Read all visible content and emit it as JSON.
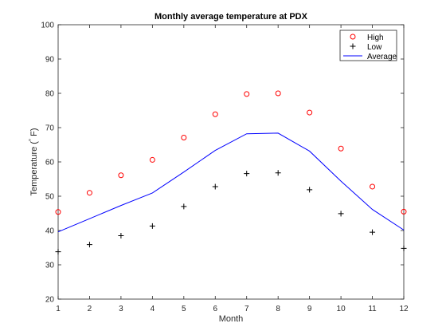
{
  "chart_data": {
    "type": "line",
    "title": "Monthly average temperature at PDX",
    "xlabel": "Month",
    "ylabel_prefix": "Temperature (",
    "ylabel_degree": "°",
    "ylabel_suffix": "F)",
    "xlim": [
      1,
      12
    ],
    "ylim": [
      20,
      100
    ],
    "x_ticks": [
      1,
      2,
      3,
      4,
      5,
      6,
      7,
      8,
      9,
      10,
      11,
      12
    ],
    "y_ticks": [
      20,
      30,
      40,
      50,
      60,
      70,
      80,
      90,
      100
    ],
    "grid": false,
    "legend_position": "top-right",
    "x": [
      1,
      2,
      3,
      4,
      5,
      6,
      7,
      8,
      9,
      10,
      11,
      12
    ],
    "series": [
      {
        "name": "High",
        "style": "circle-marker",
        "color": "#ff0000",
        "values": [
          45.4,
          51.0,
          56.1,
          60.6,
          67.1,
          73.9,
          79.8,
          80.0,
          74.4,
          63.9,
          52.8,
          45.5
        ]
      },
      {
        "name": "Low",
        "style": "plus-marker",
        "color": "#000000",
        "values": [
          33.8,
          35.9,
          38.5,
          41.3,
          47.0,
          52.8,
          56.6,
          56.8,
          51.9,
          44.9,
          39.5,
          34.8
        ]
      },
      {
        "name": "Average",
        "style": "line",
        "color": "#0000ff",
        "values": [
          39.6,
          43.45,
          47.3,
          50.95,
          57.05,
          63.35,
          68.2,
          68.4,
          63.15,
          54.4,
          46.15,
          40.15
        ]
      }
    ]
  }
}
